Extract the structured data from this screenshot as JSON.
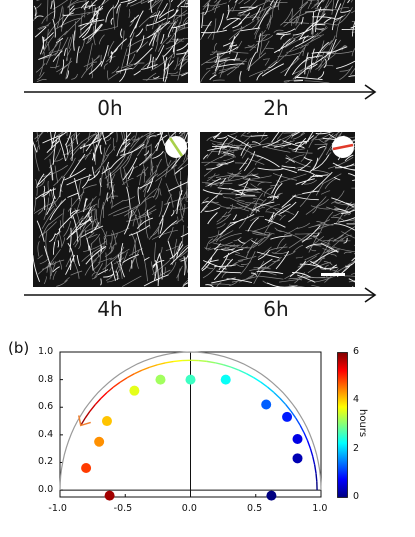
{
  "figure_a": {
    "time_labels": [
      "0h",
      "2h",
      "4h",
      "6h"
    ],
    "angle_indicators": {
      "4h": {
        "color": "#a8d04a"
      },
      "6h": {
        "color": "#e03a2a"
      }
    }
  },
  "figure_b": {
    "panel_label": "(b)",
    "x_ticks": [
      "-1.0",
      "-0.5",
      "0.0",
      "0.5",
      "1.0"
    ],
    "y_ticks": [
      "0.0",
      "0.2",
      "0.4",
      "0.6",
      "0.8",
      "1.0"
    ],
    "colorbar": {
      "title": "hours",
      "ticks": [
        "0",
        "2",
        "4",
        "6"
      ],
      "range": [
        0,
        6
      ]
    }
  },
  "chart_data": {
    "type": "scatter",
    "xlim": [
      -1.0,
      1.0
    ],
    "ylim": [
      -0.05,
      1.0
    ],
    "colormap": "jet",
    "colorbar_label": "hours",
    "points": [
      {
        "x": 0.62,
        "y": -0.04,
        "hours": 0.0
      },
      {
        "x": 0.82,
        "y": 0.23,
        "hours": 0.3
      },
      {
        "x": 0.82,
        "y": 0.37,
        "hours": 0.6
      },
      {
        "x": 0.74,
        "y": 0.53,
        "hours": 0.9
      },
      {
        "x": 0.58,
        "y": 0.62,
        "hours": 1.3
      },
      {
        "x": 0.27,
        "y": 0.8,
        "hours": 2.3
      },
      {
        "x": 0.0,
        "y": 0.8,
        "hours": 2.6
      },
      {
        "x": -0.23,
        "y": 0.8,
        "hours": 3.2
      },
      {
        "x": -0.43,
        "y": 0.72,
        "hours": 3.6
      },
      {
        "x": -0.64,
        "y": 0.5,
        "hours": 4.1
      },
      {
        "x": -0.7,
        "y": 0.35,
        "hours": 4.4
      },
      {
        "x": -0.8,
        "y": 0.16,
        "hours": 4.9
      },
      {
        "x": -0.62,
        "y": -0.04,
        "hours": 5.8
      }
    ],
    "reference_arc_radius": 1.0,
    "trajectory_arc": {
      "x_center": 0.0,
      "rx": 0.97,
      "ry": 0.94
    }
  }
}
